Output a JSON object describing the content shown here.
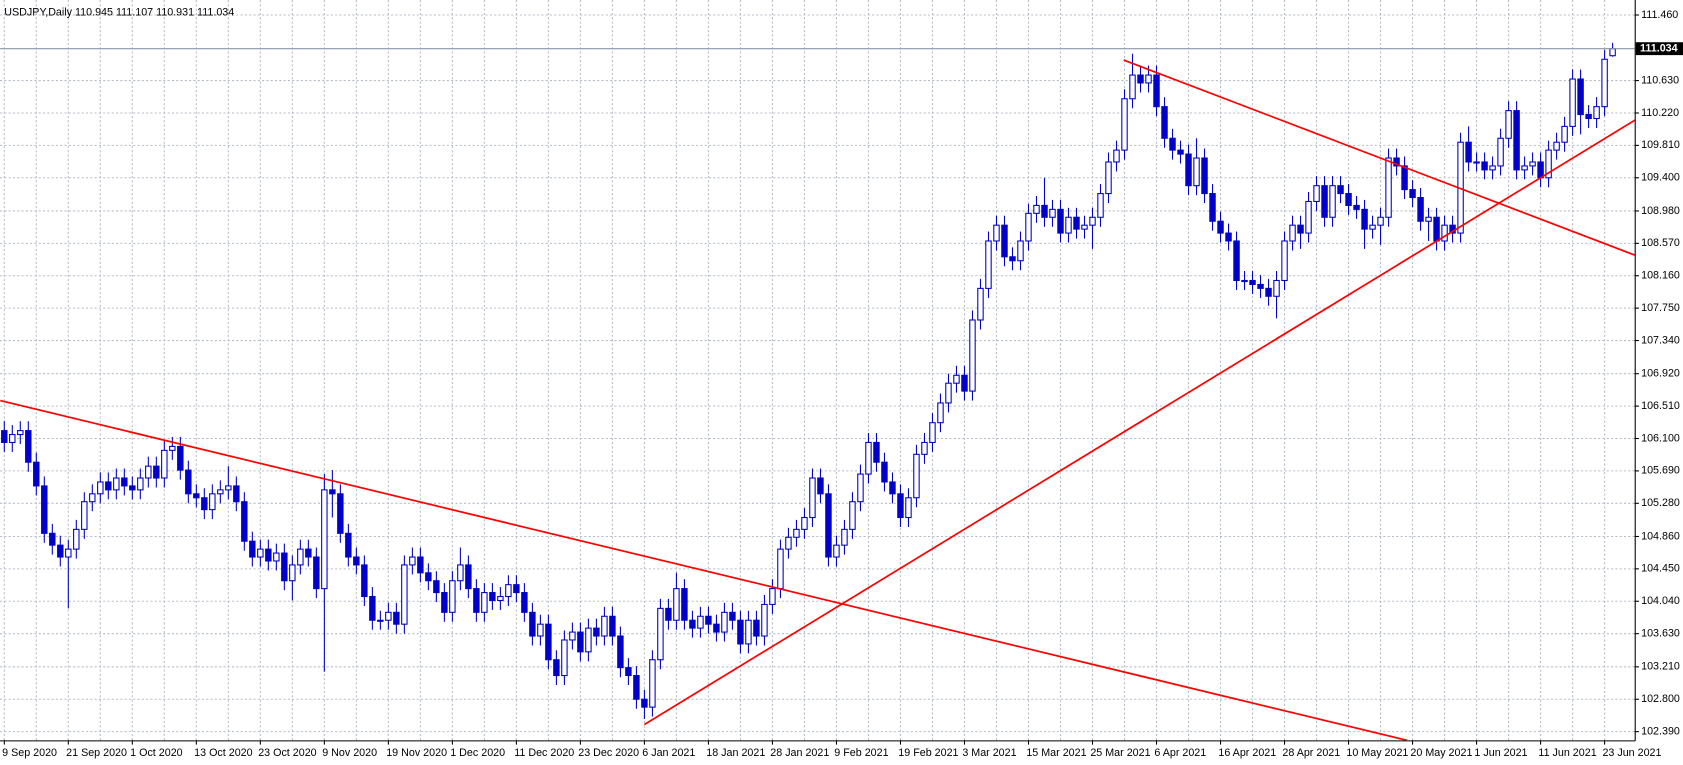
{
  "chart_data": {
    "type": "candlestick",
    "title": "USDJPY,Daily  110.945 111.107 110.931 111.034",
    "categories": [
      "9 Sep 2020",
      null,
      null,
      null,
      null,
      null,
      null,
      null,
      "21 Sep 2020",
      null,
      null,
      null,
      null,
      null,
      null,
      null,
      "1 Oct 2020",
      null,
      null,
      null,
      null,
      null,
      null,
      null,
      "13 Oct 2020",
      null,
      null,
      null,
      null,
      null,
      null,
      null,
      "23 Oct 2020",
      null,
      null,
      null,
      null,
      null,
      null,
      null,
      "9 Nov 2020",
      null,
      null,
      null,
      null,
      null,
      null,
      null,
      "19 Nov 2020",
      null,
      null,
      null,
      null,
      null,
      null,
      null,
      "1 Dec 2020",
      null,
      null,
      null,
      null,
      null,
      null,
      null,
      "11 Dec 2020",
      null,
      null,
      null,
      null,
      null,
      null,
      null,
      "23 Dec 2020",
      null,
      null,
      null,
      null,
      null,
      null,
      null,
      "6 Jan 2021",
      null,
      null,
      null,
      null,
      null,
      null,
      null,
      "18 Jan 2021",
      null,
      null,
      null,
      null,
      null,
      null,
      null,
      "28 Jan 2021",
      null,
      null,
      null,
      null,
      null,
      null,
      null,
      "9 Feb 2021",
      null,
      null,
      null,
      null,
      null,
      null,
      null,
      "19 Feb 2021",
      null,
      null,
      null,
      null,
      null,
      null,
      null,
      "3 Mar 2021",
      null,
      null,
      null,
      null,
      null,
      null,
      null,
      "15 Mar 2021",
      null,
      null,
      null,
      null,
      null,
      null,
      null,
      "25 Mar 2021",
      null,
      null,
      null,
      null,
      null,
      null,
      null,
      "6 Apr 2021",
      null,
      null,
      null,
      null,
      null,
      null,
      null,
      "16 Apr 2021",
      null,
      null,
      null,
      null,
      null,
      null,
      null,
      "28 Apr 2021",
      null,
      null,
      null,
      null,
      null,
      null,
      null,
      "10 May 2021",
      null,
      null,
      null,
      null,
      null,
      null,
      null,
      "20 May 2021",
      null,
      null,
      null,
      null,
      null,
      null,
      null,
      "1 Jun 2021",
      null,
      null,
      null,
      null,
      null,
      null,
      null,
      "11 Jun 2021",
      null,
      null,
      null,
      null,
      null,
      null,
      null,
      "23 Jun 2021",
      null
    ],
    "open": [
      106.2,
      106.05,
      106.15,
      106.2,
      105.8,
      105.5,
      104.9,
      104.75,
      104.6,
      104.7,
      104.95,
      105.3,
      105.4,
      105.55,
      105.45,
      105.6,
      105.5,
      105.45,
      105.6,
      105.75,
      105.6,
      105.95,
      106.0,
      105.7,
      105.4,
      105.35,
      105.2,
      105.4,
      105.45,
      105.5,
      105.3,
      104.8,
      104.6,
      104.7,
      104.55,
      104.65,
      104.3,
      104.5,
      104.7,
      104.6,
      104.2,
      105.45,
      105.4,
      104.9,
      104.6,
      104.5,
      104.1,
      103.8,
      103.8,
      103.9,
      103.75,
      104.5,
      104.6,
      104.4,
      104.3,
      104.15,
      103.9,
      104.3,
      104.5,
      104.2,
      103.9,
      104.15,
      104.05,
      104.1,
      104.25,
      104.15,
      103.9,
      103.6,
      103.75,
      103.3,
      103.1,
      103.55,
      103.65,
      103.4,
      103.7,
      103.6,
      103.85,
      103.6,
      103.2,
      103.1,
      102.8,
      102.7,
      103.3,
      103.95,
      103.8,
      104.2,
      103.8,
      103.7,
      103.85,
      103.75,
      103.65,
      103.9,
      103.8,
      103.5,
      103.8,
      103.6,
      104.0,
      104.2,
      104.7,
      104.85,
      104.95,
      105.1,
      105.6,
      105.4,
      104.6,
      104.75,
      104.95,
      105.3,
      105.65,
      106.05,
      105.8,
      105.55,
      105.4,
      105.1,
      105.35,
      105.9,
      106.05,
      106.3,
      106.55,
      106.8,
      106.9,
      106.7,
      107.6,
      108.0,
      108.6,
      108.8,
      108.4,
      108.35,
      108.6,
      108.95,
      109.05,
      108.9,
      109.0,
      108.7,
      108.9,
      108.75,
      108.8,
      108.9,
      109.2,
      109.6,
      109.75,
      110.4,
      110.7,
      110.6,
      110.7,
      110.3,
      109.9,
      109.75,
      109.7,
      109.3,
      109.65,
      109.2,
      108.85,
      108.7,
      108.6,
      108.1,
      108.1,
      108.05,
      108.0,
      107.9,
      108.1,
      108.6,
      108.8,
      108.7,
      109.1,
      109.3,
      108.9,
      109.3,
      109.2,
      109.05,
      109.0,
      108.75,
      108.8,
      108.9,
      109.65,
      109.55,
      109.25,
      109.15,
      108.85,
      108.9,
      108.6,
      108.8,
      108.7,
      109.85,
      109.6,
      109.6,
      109.5,
      109.55,
      109.9,
      110.25,
      109.5,
      109.55,
      109.6,
      109.4,
      109.75,
      109.85,
      110.05,
      110.65,
      110.2,
      110.15,
      110.3,
      110.945
    ],
    "high": [
      106.32,
      106.27,
      106.32,
      106.32,
      105.92,
      105.62,
      105.02,
      104.87,
      104.82,
      105.07,
      105.42,
      105.52,
      105.67,
      105.67,
      105.72,
      105.72,
      105.62,
      105.72,
      105.87,
      105.87,
      106.07,
      106.12,
      106.12,
      105.82,
      105.52,
      105.47,
      105.52,
      105.57,
      105.75,
      105.62,
      105.42,
      104.92,
      104.82,
      104.82,
      104.77,
      104.77,
      104.62,
      104.82,
      104.82,
      104.72,
      105.65,
      105.7,
      105.52,
      105.02,
      104.72,
      104.62,
      104.22,
      103.92,
      104.02,
      104.02,
      104.62,
      104.72,
      104.72,
      104.52,
      104.42,
      104.27,
      104.42,
      104.72,
      104.62,
      104.32,
      104.27,
      104.27,
      104.22,
      104.37,
      104.37,
      104.27,
      104.02,
      103.87,
      103.87,
      103.42,
      103.67,
      103.77,
      103.77,
      103.82,
      103.82,
      103.97,
      103.97,
      103.72,
      103.32,
      103.22,
      102.92,
      103.42,
      104.07,
      104.07,
      104.4,
      104.32,
      103.92,
      103.97,
      103.97,
      103.87,
      104.02,
      104.02,
      103.92,
      103.92,
      103.92,
      104.12,
      104.32,
      104.82,
      104.97,
      105.07,
      105.22,
      105.72,
      105.72,
      105.52,
      104.87,
      105.07,
      105.42,
      105.77,
      106.17,
      106.17,
      105.92,
      105.67,
      105.52,
      105.47,
      106.02,
      106.17,
      106.42,
      106.67,
      106.92,
      107.02,
      107.02,
      107.72,
      108.12,
      108.72,
      108.92,
      108.92,
      108.52,
      108.72,
      109.07,
      109.17,
      109.4,
      109.12,
      109.12,
      109.02,
      109.02,
      108.92,
      109.02,
      109.32,
      109.72,
      109.87,
      110.52,
      110.97,
      110.82,
      110.82,
      110.82,
      110.42,
      110.02,
      109.87,
      109.82,
      109.9,
      109.77,
      109.32,
      108.97,
      108.82,
      108.72,
      108.22,
      108.22,
      108.17,
      108.12,
      108.22,
      108.72,
      108.92,
      108.92,
      109.22,
      109.42,
      109.42,
      109.42,
      109.42,
      109.32,
      109.17,
      109.12,
      108.92,
      109.02,
      109.77,
      109.77,
      109.67,
      109.37,
      109.27,
      109.02,
      109.02,
      108.92,
      108.92,
      109.97,
      110.05,
      109.72,
      109.72,
      109.67,
      110.02,
      110.37,
      110.37,
      109.67,
      109.72,
      109.72,
      109.87,
      109.97,
      110.17,
      110.77,
      110.77,
      110.32,
      110.42,
      111.02,
      111.107
    ],
    "low": [
      105.93,
      105.93,
      106.03,
      105.68,
      105.38,
      104.78,
      104.63,
      104.48,
      103.95,
      104.58,
      104.83,
      105.18,
      105.28,
      105.33,
      105.33,
      105.38,
      105.33,
      105.33,
      105.48,
      105.48,
      105.48,
      105.83,
      105.58,
      105.28,
      105.23,
      105.08,
      105.08,
      105.28,
      105.33,
      105.18,
      104.68,
      104.48,
      104.48,
      104.43,
      104.43,
      104.18,
      104.05,
      104.38,
      104.48,
      104.08,
      103.15,
      105.1,
      104.78,
      104.48,
      104.38,
      103.98,
      103.68,
      103.68,
      103.68,
      103.63,
      103.63,
      104.38,
      104.28,
      104.18,
      104.03,
      103.78,
      103.78,
      104.18,
      104.08,
      103.78,
      103.78,
      103.93,
      103.93,
      103.98,
      104.03,
      103.78,
      103.48,
      103.48,
      103.18,
      102.98,
      102.98,
      103.43,
      103.28,
      103.28,
      103.48,
      103.48,
      103.48,
      103.08,
      102.98,
      102.68,
      102.55,
      102.58,
      103.18,
      103.68,
      103.68,
      103.68,
      103.58,
      103.58,
      103.63,
      103.53,
      103.53,
      103.68,
      103.38,
      103.38,
      103.48,
      103.48,
      103.88,
      104.08,
      104.58,
      104.73,
      104.83,
      104.98,
      105.28,
      104.48,
      104.48,
      104.63,
      104.83,
      105.18,
      105.53,
      105.68,
      105.43,
      105.28,
      104.98,
      104.98,
      105.23,
      105.78,
      105.93,
      106.18,
      106.43,
      106.68,
      106.58,
      106.58,
      107.48,
      107.88,
      108.48,
      108.28,
      108.23,
      108.23,
      108.48,
      108.83,
      108.78,
      108.78,
      108.58,
      108.58,
      108.63,
      108.63,
      108.5,
      108.78,
      109.08,
      109.48,
      109.63,
      110.28,
      110.48,
      110.48,
      110.18,
      109.78,
      109.63,
      109.58,
      109.18,
      109.18,
      109.08,
      108.73,
      108.58,
      108.48,
      107.98,
      107.98,
      107.93,
      107.88,
      107.78,
      107.62,
      107.98,
      108.48,
      108.5,
      108.58,
      108.98,
      108.78,
      108.78,
      109.08,
      108.93,
      108.88,
      108.5,
      108.63,
      108.55,
      108.78,
      109.43,
      109.13,
      109.03,
      108.73,
      108.6,
      108.48,
      108.48,
      108.58,
      108.58,
      109.48,
      109.48,
      109.38,
      109.38,
      109.43,
      109.78,
      109.38,
      109.38,
      109.43,
      109.28,
      109.28,
      109.63,
      109.73,
      109.93,
      109.95,
      110.03,
      110.03,
      110.18,
      110.931
    ],
    "close": [
      106.05,
      106.15,
      106.2,
      105.8,
      105.5,
      104.9,
      104.75,
      104.6,
      104.7,
      104.95,
      105.3,
      105.4,
      105.55,
      105.45,
      105.6,
      105.5,
      105.45,
      105.6,
      105.75,
      105.6,
      105.95,
      106.0,
      105.7,
      105.4,
      105.35,
      105.2,
      105.4,
      105.45,
      105.5,
      105.3,
      104.8,
      104.6,
      104.7,
      104.55,
      104.65,
      104.3,
      104.5,
      104.7,
      104.6,
      104.2,
      105.45,
      105.4,
      104.9,
      104.6,
      104.5,
      104.1,
      103.8,
      103.8,
      103.9,
      103.75,
      104.5,
      104.6,
      104.4,
      104.3,
      104.15,
      103.9,
      104.3,
      104.5,
      104.2,
      103.9,
      104.15,
      104.05,
      104.1,
      104.25,
      104.15,
      103.9,
      103.6,
      103.75,
      103.3,
      103.1,
      103.55,
      103.65,
      103.4,
      103.7,
      103.6,
      103.85,
      103.6,
      103.2,
      103.1,
      102.8,
      102.7,
      103.3,
      103.95,
      103.8,
      104.2,
      103.8,
      103.7,
      103.85,
      103.75,
      103.65,
      103.9,
      103.8,
      103.5,
      103.8,
      103.6,
      104.0,
      104.2,
      104.7,
      104.85,
      104.95,
      105.1,
      105.6,
      105.4,
      104.6,
      104.75,
      104.95,
      105.3,
      105.65,
      106.05,
      105.8,
      105.55,
      105.4,
      105.1,
      105.35,
      105.9,
      106.05,
      106.3,
      106.55,
      106.8,
      106.9,
      106.7,
      107.6,
      108.0,
      108.6,
      108.8,
      108.4,
      108.35,
      108.6,
      108.95,
      109.05,
      108.9,
      109.0,
      108.7,
      108.9,
      108.75,
      108.8,
      108.9,
      109.2,
      109.6,
      109.75,
      110.4,
      110.7,
      110.6,
      110.7,
      110.3,
      109.9,
      109.75,
      109.7,
      109.3,
      109.65,
      109.2,
      108.85,
      108.7,
      108.6,
      108.1,
      108.1,
      108.05,
      108.0,
      107.9,
      108.1,
      108.6,
      108.8,
      108.7,
      109.1,
      109.3,
      108.9,
      109.3,
      109.2,
      109.05,
      109.0,
      108.75,
      108.8,
      108.9,
      109.65,
      109.55,
      109.25,
      109.15,
      108.85,
      108.9,
      108.6,
      108.8,
      108.7,
      109.85,
      109.6,
      109.6,
      109.5,
      109.55,
      109.9,
      110.25,
      109.5,
      109.55,
      109.6,
      109.4,
      109.75,
      109.85,
      110.05,
      110.65,
      110.2,
      110.15,
      110.3,
      110.9,
      111.034
    ],
    "up_color": "#ffffff",
    "down_color": "#0000c8",
    "wick_color": "#0000c8",
    "ylim": [
      102.28,
      111.65
    ],
    "yticks": [
      {
        "value": 111.46,
        "label": "111.460"
      },
      {
        "value": 110.63,
        "label": "110.630"
      },
      {
        "value": 110.22,
        "label": "110.220"
      },
      {
        "value": 109.81,
        "label": "109.810"
      },
      {
        "value": 109.4,
        "label": "109.400"
      },
      {
        "value": 108.98,
        "label": "108.980"
      },
      {
        "value": 108.57,
        "label": "108.570"
      },
      {
        "value": 108.16,
        "label": "108.160"
      },
      {
        "value": 107.75,
        "label": "107.750"
      },
      {
        "value": 107.34,
        "label": "107.340"
      },
      {
        "value": 106.92,
        "label": "106.920"
      },
      {
        "value": 106.51,
        "label": "106.510"
      },
      {
        "value": 106.1,
        "label": "106.100"
      },
      {
        "value": 105.69,
        "label": "105.690"
      },
      {
        "value": 105.28,
        "label": "105.280"
      },
      {
        "value": 104.86,
        "label": "104.860"
      },
      {
        "value": 104.45,
        "label": "104.450"
      },
      {
        "value": 104.04,
        "label": "104.040"
      },
      {
        "value": 103.63,
        "label": "103.630"
      },
      {
        "value": 103.21,
        "label": "103.210"
      },
      {
        "value": 102.8,
        "label": "102.800"
      },
      {
        "value": 102.39,
        "label": "102.390"
      }
    ],
    "last_price": {
      "value": 111.034,
      "label": "111.034"
    },
    "grid": true,
    "trendline_color": "#ff0000",
    "trendlines": [
      {
        "x": [
          -0.5,
          175.3
        ],
        "y": [
          106.58,
          102.28
        ]
      },
      {
        "x": [
          80.0,
          203.8
        ],
        "y": [
          102.48,
          110.13
        ]
      },
      {
        "x": [
          139.9,
          203.8
        ],
        "y": [
          110.89,
          108.42
        ]
      }
    ]
  }
}
